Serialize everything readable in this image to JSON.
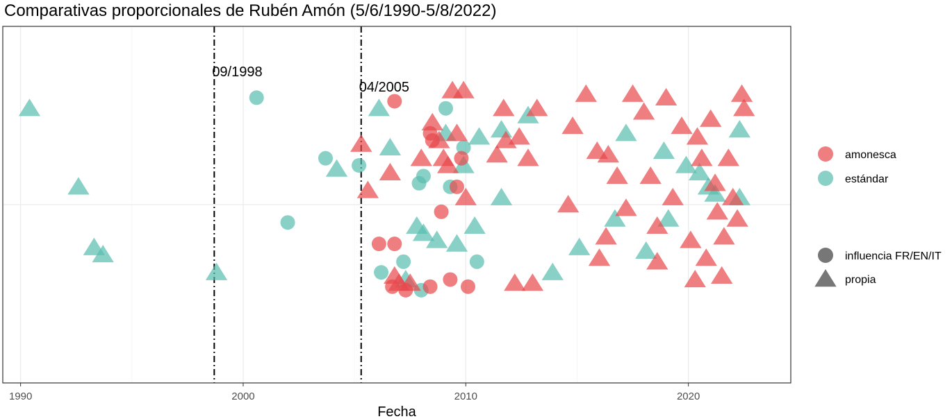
{
  "chart_data": {
    "type": "scatter",
    "title": "Comparativas proporcionales de Rubén Amón (5/6/1990-5/8/2022)",
    "xlabel": "Fecha",
    "ylabel": "",
    "xlim": [
      1989.2,
      2024.6
    ],
    "ylim": [
      0,
      1
    ],
    "x_ticks": [
      1990,
      2000,
      2010,
      2020
    ],
    "x_tick_labels": [
      "1990",
      "2000",
      "2010",
      "2020"
    ],
    "grid": true,
    "legend_position": "right",
    "colors": {
      "amonesca": "#e8474c",
      "estandar": "#57bdae",
      "legend_shape": "#777777"
    },
    "vlines": [
      {
        "x": 1998.7,
        "label": "09/1998"
      },
      {
        "x": 2005.3,
        "label": "04/2005"
      }
    ],
    "legend": {
      "color": [
        {
          "key": "amonesca",
          "label": "amonesca"
        },
        {
          "key": "estandar",
          "label": "estándar"
        }
      ],
      "shape": [
        {
          "key": "circle",
          "label": "influencia FR/EN/IT"
        },
        {
          "key": "triangle",
          "label": "propia"
        }
      ]
    },
    "series": [
      {
        "group": "estandar",
        "shape": "triangle",
        "points": [
          [
            1990.4,
            0.77
          ],
          [
            1992.6,
            0.55
          ],
          [
            1993.3,
            0.38
          ],
          [
            1993.7,
            0.36
          ],
          [
            1998.8,
            0.31
          ],
          [
            2004.2,
            0.6
          ],
          [
            2006.1,
            0.77
          ],
          [
            2006.6,
            0.66
          ],
          [
            2007.3,
            0.29
          ],
          [
            2007.8,
            0.44
          ],
          [
            2008.1,
            0.42
          ],
          [
            2008.7,
            0.4
          ],
          [
            2009.1,
            0.7
          ],
          [
            2009.6,
            0.39
          ],
          [
            2009.9,
            0.61
          ],
          [
            2010.4,
            0.44
          ],
          [
            2010.6,
            0.69
          ],
          [
            2011.6,
            0.71
          ],
          [
            2011.6,
            0.52
          ],
          [
            2012.8,
            0.75
          ],
          [
            2013.9,
            0.31
          ],
          [
            2015.1,
            0.38
          ],
          [
            2016.7,
            0.46
          ],
          [
            2017.2,
            0.7
          ],
          [
            2018.1,
            0.37
          ],
          [
            2018.9,
            0.65
          ],
          [
            2019.1,
            0.46
          ],
          [
            2019.9,
            0.61
          ],
          [
            2020.5,
            0.59
          ],
          [
            2020.9,
            0.55
          ],
          [
            2021.2,
            0.53
          ],
          [
            2022.3,
            0.52
          ],
          [
            2022.3,
            0.71
          ]
        ]
      },
      {
        "group": "estandar",
        "shape": "circle",
        "points": [
          [
            2000.6,
            0.8
          ],
          [
            2002.0,
            0.45
          ],
          [
            2003.7,
            0.63
          ],
          [
            2005.2,
            0.61
          ],
          [
            2006.2,
            0.31
          ],
          [
            2007.2,
            0.34
          ],
          [
            2007.9,
            0.56
          ],
          [
            2008.0,
            0.26
          ],
          [
            2008.1,
            0.58
          ],
          [
            2009.1,
            0.77
          ],
          [
            2009.3,
            0.55
          ],
          [
            2009.9,
            0.66
          ],
          [
            2010.5,
            0.34
          ]
        ]
      },
      {
        "group": "amonesca",
        "shape": "triangle",
        "points": [
          [
            2005.3,
            0.67
          ],
          [
            2005.6,
            0.54
          ],
          [
            2006.6,
            0.59
          ],
          [
            2006.8,
            0.3
          ],
          [
            2007.0,
            0.28
          ],
          [
            2007.5,
            0.28
          ],
          [
            2008.0,
            0.63
          ],
          [
            2008.5,
            0.73
          ],
          [
            2008.8,
            0.68
          ],
          [
            2009.0,
            0.63
          ],
          [
            2009.2,
            0.61
          ],
          [
            2009.4,
            0.82
          ],
          [
            2009.6,
            0.7
          ],
          [
            2009.9,
            0.82
          ],
          [
            2010.0,
            0.52
          ],
          [
            2011.4,
            0.64
          ],
          [
            2011.7,
            0.77
          ],
          [
            2011.8,
            0.68
          ],
          [
            2012.4,
            0.69
          ],
          [
            2012.8,
            0.63
          ],
          [
            2013.2,
            0.77
          ],
          [
            2014.6,
            0.5
          ],
          [
            2014.8,
            0.72
          ],
          [
            2015.4,
            0.81
          ],
          [
            2015.9,
            0.65
          ],
          [
            2016.3,
            0.41
          ],
          [
            2016.8,
            0.58
          ],
          [
            2017.2,
            0.49
          ],
          [
            2017.5,
            0.81
          ],
          [
            2018.0,
            0.76
          ],
          [
            2018.3,
            0.58
          ],
          [
            2018.6,
            0.44
          ],
          [
            2019.0,
            0.8
          ],
          [
            2019.3,
            0.52
          ],
          [
            2019.7,
            0.72
          ],
          [
            2020.1,
            0.4
          ],
          [
            2020.4,
            0.69
          ],
          [
            2020.6,
            0.63
          ],
          [
            2020.8,
            0.35
          ],
          [
            2021.0,
            0.74
          ],
          [
            2021.2,
            0.56
          ],
          [
            2021.3,
            0.48
          ],
          [
            2021.5,
            0.3
          ],
          [
            2021.6,
            0.41
          ],
          [
            2021.8,
            0.63
          ],
          [
            2022.0,
            0.52
          ],
          [
            2022.2,
            0.46
          ],
          [
            2022.4,
            0.81
          ],
          [
            2022.5,
            0.77
          ],
          [
            2016.4,
            0.64
          ],
          [
            2016.0,
            0.35
          ],
          [
            2018.6,
            0.34
          ],
          [
            2020.3,
            0.29
          ],
          [
            2012.2,
            0.28
          ],
          [
            2013.0,
            0.28
          ]
        ]
      },
      {
        "group": "amonesca",
        "shape": "circle",
        "points": [
          [
            2006.1,
            0.39
          ],
          [
            2006.8,
            0.79
          ],
          [
            2006.8,
            0.39
          ],
          [
            2006.7,
            0.27
          ],
          [
            2007.3,
            0.26
          ],
          [
            2008.4,
            0.27
          ],
          [
            2008.4,
            0.7
          ],
          [
            2008.9,
            0.48
          ],
          [
            2009.3,
            0.29
          ],
          [
            2009.8,
            0.63
          ],
          [
            2010.1,
            0.27
          ],
          [
            2008.5,
            0.68
          ],
          [
            2009.6,
            0.55
          ]
        ]
      }
    ]
  }
}
